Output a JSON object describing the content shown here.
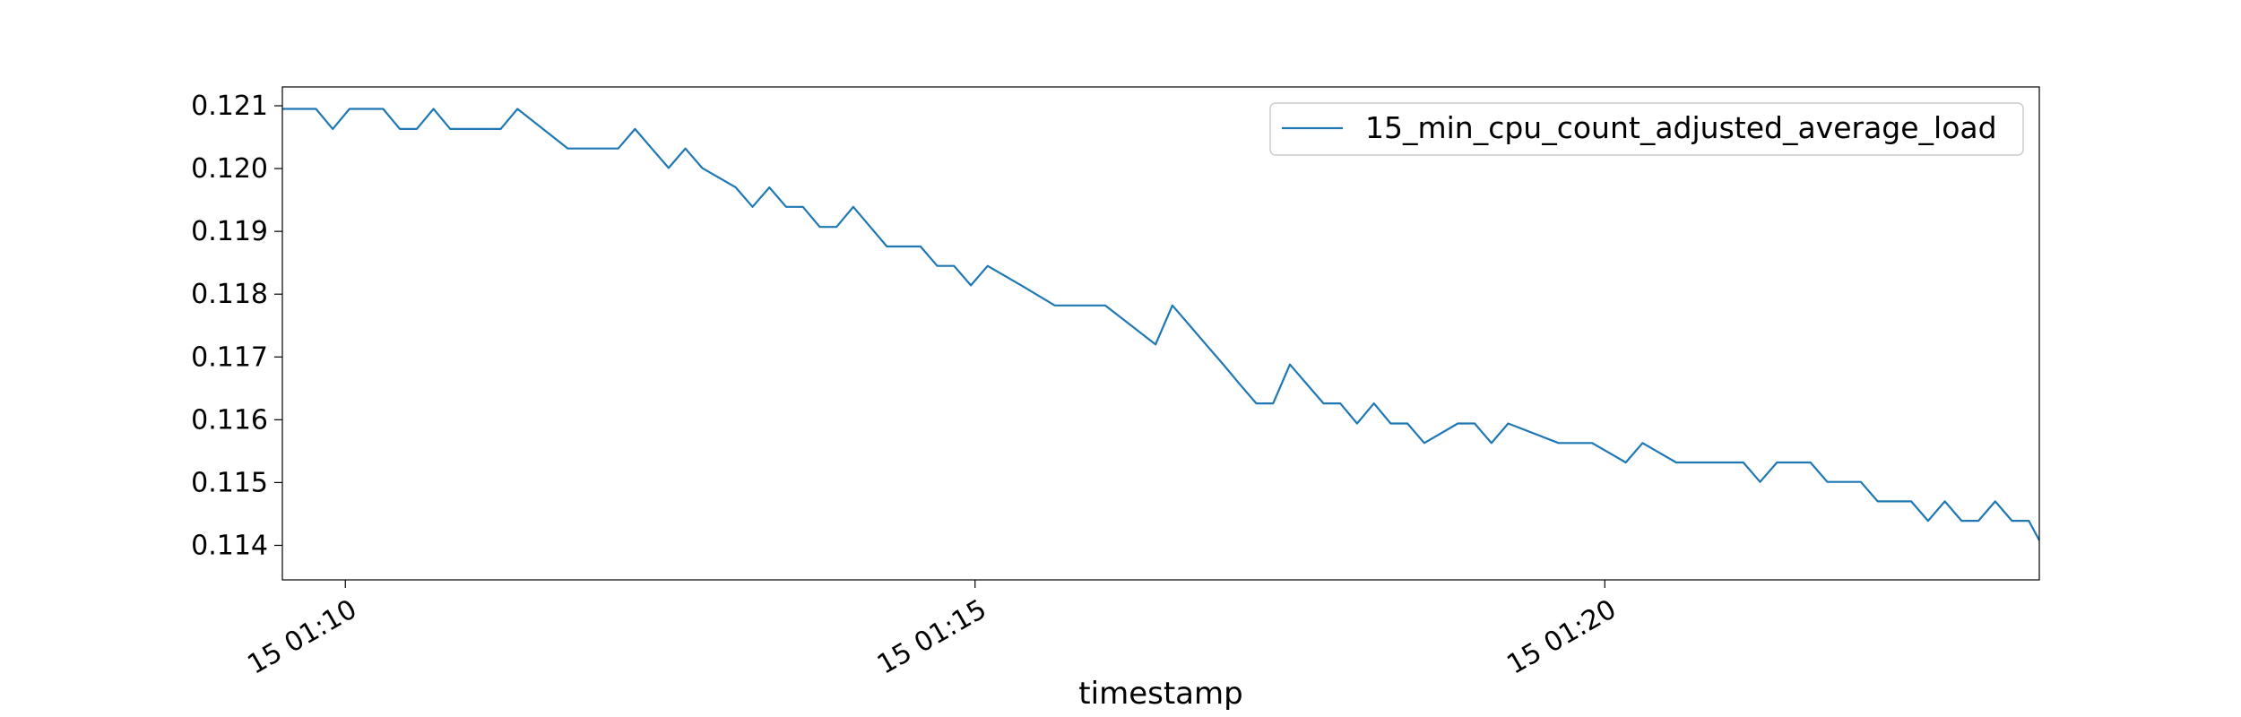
{
  "chart_data": {
    "type": "line",
    "title": "",
    "xlabel": "timestamp",
    "ylabel": "",
    "x_tick_labels": [
      "15 01:10",
      "15 01:15",
      "15 01:20"
    ],
    "x_tick_minutes": [
      10,
      15,
      20
    ],
    "xlim_minutes": [
      9.5,
      23.45
    ],
    "y_tick_labels": [
      "0.114",
      "0.115",
      "0.116",
      "0.117",
      "0.118",
      "0.119",
      "0.120",
      "0.121"
    ],
    "y_ticks": [
      0.114,
      0.115,
      0.116,
      0.117,
      0.118,
      0.119,
      0.12,
      0.121
    ],
    "ylim": [
      0.11345,
      0.1213
    ],
    "grid": false,
    "legend_position": "top-right",
    "series": [
      {
        "name": "15_min_cpu_count_adjusted_average_load",
        "color": "#1f77b4",
        "x_minutes": [
          9.5,
          9.767,
          9.9,
          10.033,
          10.3,
          10.433,
          10.567,
          10.7,
          10.833,
          11.233,
          11.367,
          11.767,
          11.9,
          12.167,
          12.3,
          12.433,
          12.567,
          12.7,
          12.833,
          13.1,
          13.233,
          13.367,
          13.5,
          13.633,
          13.767,
          13.9,
          14.033,
          14.3,
          14.433,
          14.567,
          14.7,
          14.833,
          14.967,
          15.1,
          15.367,
          15.633,
          15.9,
          16.033,
          16.433,
          16.567,
          16.7,
          16.833,
          16.967,
          17.1,
          17.233,
          17.367,
          17.5,
          17.633,
          17.767,
          17.9,
          18.033,
          18.167,
          18.3,
          18.433,
          18.567,
          18.833,
          18.967,
          19.1,
          19.233,
          19.633,
          19.767,
          19.9,
          20.167,
          20.3,
          20.567,
          20.7,
          21.1,
          21.233,
          21.367,
          21.5,
          21.633,
          21.767,
          21.9,
          22.033,
          22.167,
          22.3,
          22.433,
          22.567,
          22.7,
          22.833,
          22.967,
          23.1,
          23.233,
          23.367,
          23.45
        ],
        "values": [
          0.12095,
          0.12095,
          0.12063,
          0.12095,
          0.12095,
          0.12063,
          0.12063,
          0.12095,
          0.12063,
          0.12063,
          0.12095,
          0.12032,
          0.12032,
          0.12032,
          0.12063,
          0.12032,
          0.12001,
          0.12032,
          0.12001,
          0.1197,
          0.11939,
          0.1197,
          0.11939,
          0.11939,
          0.11907,
          0.11907,
          0.11939,
          0.11876,
          0.11876,
          0.11876,
          0.11845,
          0.11845,
          0.11814,
          0.11845,
          0.11814,
          0.11782,
          0.11782,
          0.11782,
          0.1172,
          0.11782,
          0.11751,
          0.1172,
          0.11689,
          0.11657,
          0.11626,
          0.11626,
          0.11688,
          0.11657,
          0.11626,
          0.11626,
          0.11594,
          0.11626,
          0.11594,
          0.11594,
          0.11563,
          0.11594,
          0.11594,
          0.11563,
          0.11594,
          0.11563,
          0.11563,
          0.11563,
          0.11532,
          0.11563,
          0.11532,
          0.11532,
          0.11532,
          0.11501,
          0.11532,
          0.11532,
          0.11532,
          0.11501,
          0.11501,
          0.11501,
          0.1147,
          0.1147,
          0.1147,
          0.11439,
          0.1147,
          0.11439,
          0.11439,
          0.1147,
          0.11439,
          0.11439,
          0.11408
        ]
      }
    ]
  }
}
